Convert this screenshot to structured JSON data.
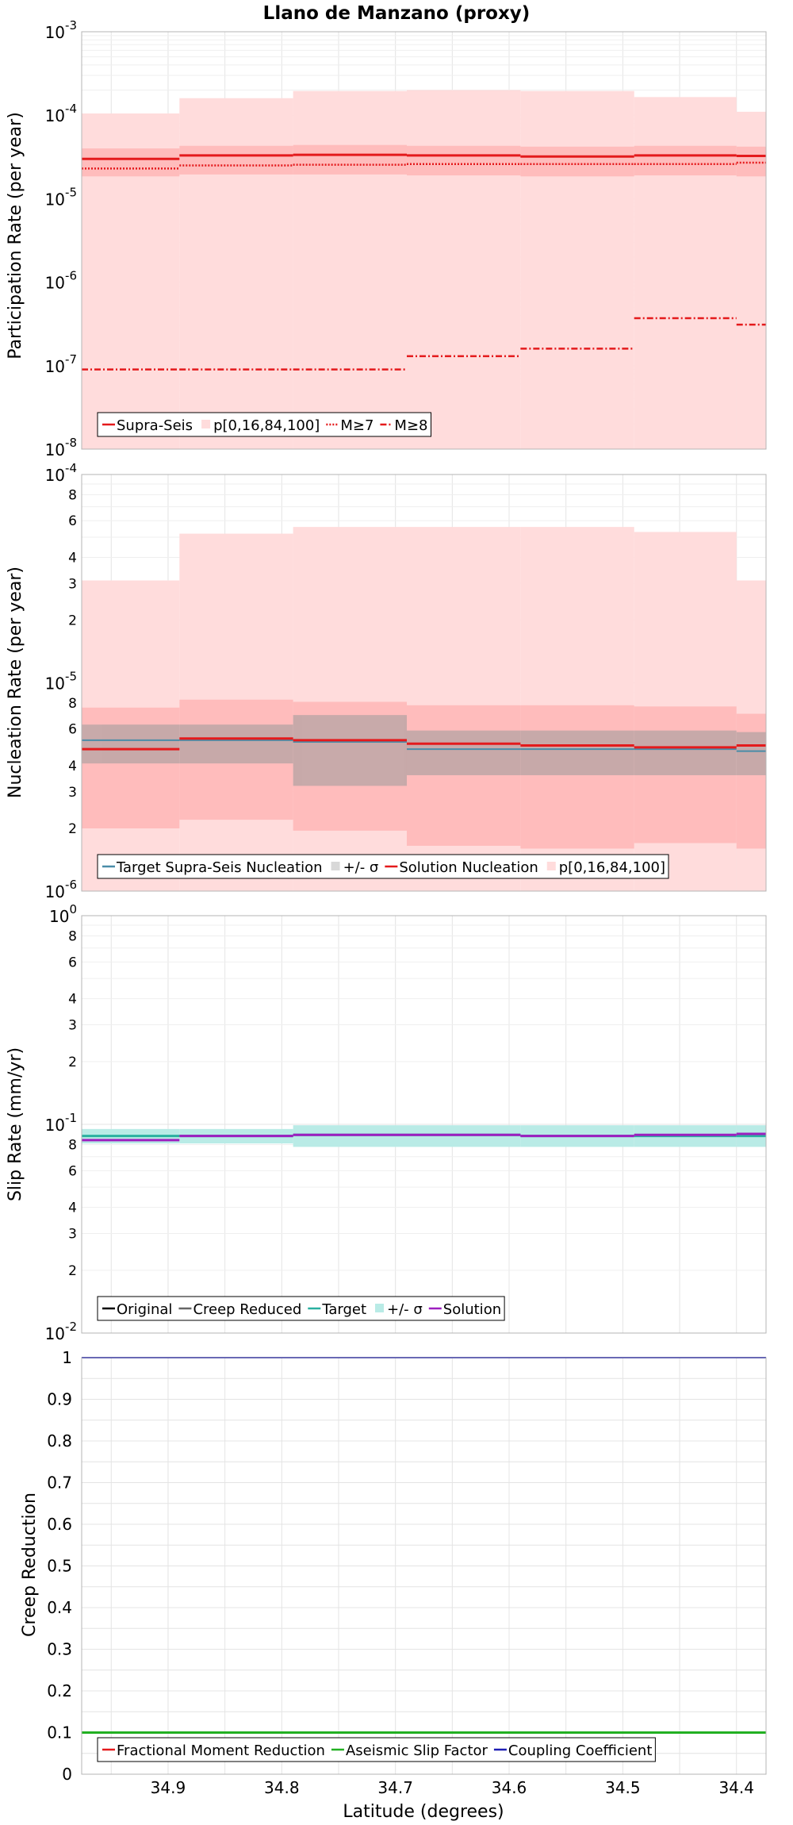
{
  "title": "Llano de Manzano (proxy)",
  "xlabel": "Latitude (degrees)",
  "x_ticks": [
    "34.9",
    "34.8",
    "34.7",
    "34.6",
    "34.5",
    "34.4"
  ],
  "colors": {
    "red": "#e41a1c",
    "pink": "#ffdcdc",
    "pink_mid": "#ffbcbc",
    "gray": "#9a9a9a",
    "teal": "#2ab0a0",
    "teal_band": "#b9ebe6",
    "purple": "#9d1fbf",
    "green": "#22b022",
    "blue": "#1e1eb4",
    "steel": "#4a8da8"
  },
  "chart_data": [
    {
      "type": "line",
      "subtype": "step",
      "ylabel": "Participation Rate (per year)",
      "yscale": "log",
      "ylim": [
        1e-08,
        0.001
      ],
      "x_range": [
        34.976,
        34.374
      ],
      "x_bins": [
        34.976,
        34.89,
        34.79,
        34.69,
        34.59,
        34.49,
        34.4,
        34.374
      ],
      "y_ticks": [
        "10-8",
        "10-7",
        "10-6",
        "10-5",
        "10-4",
        "10-3"
      ],
      "grid": true,
      "legend_position": "bottom-left",
      "series": [
        {
          "name": "Supra-Seis",
          "style": "solid",
          "values": [
            3e-05,
            3.3e-05,
            3.35e-05,
            3.3e-05,
            3.2e-05,
            3.3e-05,
            3.25e-05,
            2.9e-05
          ]
        },
        {
          "name": "p[0,16,84,100]",
          "style": "band",
          "outer_low": [
            1e-08,
            1e-08,
            1e-08,
            1e-08,
            1e-08,
            1e-08,
            1e-08,
            1e-08
          ],
          "outer_high": [
            0.000105,
            0.00016,
            0.000195,
            0.0002,
            0.000195,
            0.000165,
            0.00011,
            0.000105
          ],
          "inner_low": [
            1.85e-05,
            1.95e-05,
            1.95e-05,
            1.9e-05,
            1.85e-05,
            1.9e-05,
            1.85e-05,
            1.8e-05
          ],
          "inner_high": [
            4e-05,
            4.3e-05,
            4.4e-05,
            4.3e-05,
            4.2e-05,
            4.3e-05,
            4.2e-05,
            4e-05
          ]
        },
        {
          "name": "M≥7",
          "style": "dotted",
          "values": [
            2.3e-05,
            2.5e-05,
            2.55e-05,
            2.6e-05,
            2.6e-05,
            2.6e-05,
            2.7e-05,
            2.3e-05
          ]
        },
        {
          "name": "M≥8",
          "style": "dashdot",
          "values": [
            9e-08,
            9e-08,
            9e-08,
            1.3e-07,
            1.6e-07,
            3.7e-07,
            3.1e-07,
            2.6e-07
          ]
        }
      ]
    },
    {
      "type": "line",
      "subtype": "step",
      "ylabel": "Nucleation Rate (per year)",
      "yscale": "log",
      "ylim": [
        1e-06,
        0.0001
      ],
      "x_range": [
        34.976,
        34.374
      ],
      "x_bins": [
        34.976,
        34.89,
        34.79,
        34.69,
        34.59,
        34.49,
        34.4,
        34.374
      ],
      "y_ticks": [
        "10-6",
        "2",
        "3",
        "4",
        "6",
        "8",
        "10-5",
        "2",
        "3",
        "4",
        "6",
        "8",
        "10-4"
      ],
      "grid": true,
      "legend_position": "bottom-left",
      "series": [
        {
          "name": "Target Supra-Seis Nucleation",
          "style": "solid",
          "values": [
            5.3e-06,
            5.3e-06,
            5.2e-06,
            4.8e-06,
            4.8e-06,
            4.8e-06,
            4.7e-06,
            5e-06
          ]
        },
        {
          "name": "+/- σ",
          "style": "band",
          "low": [
            4.1e-06,
            4.1e-06,
            3.2e-06,
            3.6e-06,
            3.6e-06,
            3.6e-06,
            3.6e-06,
            3.8e-06
          ],
          "high": [
            6.3e-06,
            6.3e-06,
            7e-06,
            5.9e-06,
            5.9e-06,
            5.9e-06,
            5.8e-06,
            6e-06
          ]
        },
        {
          "name": "Solution Nucleation",
          "style": "solid",
          "values": [
            4.8e-06,
            5.4e-06,
            5.3e-06,
            5.1e-06,
            5e-06,
            4.9e-06,
            5e-06,
            4.3e-06
          ]
        },
        {
          "name": "p[0,16,84,100]",
          "style": "band",
          "outer_low": [
            1e-06,
            1e-06,
            1e-06,
            1e-06,
            1e-06,
            1e-06,
            1e-06,
            1e-06
          ],
          "outer_high": [
            3.1e-05,
            5.2e-05,
            5.6e-05,
            5.6e-05,
            5.6e-05,
            5.3e-05,
            3.1e-05,
            3.1e-05
          ],
          "inner_low": [
            2e-06,
            2.2e-06,
            1.95e-06,
            1.65e-06,
            1.6e-06,
            1.7e-06,
            1.6e-06,
            1.6e-06
          ],
          "inner_high": [
            7.6e-06,
            8.3e-06,
            8.1e-06,
            7.8e-06,
            7.8e-06,
            7.7e-06,
            7.1e-06,
            7e-06
          ]
        }
      ]
    },
    {
      "type": "line",
      "subtype": "step",
      "ylabel": "Slip Rate (mm/yr)",
      "yscale": "log",
      "ylim": [
        0.01,
        1
      ],
      "x_range": [
        34.976,
        34.374
      ],
      "x_bins": [
        34.976,
        34.89,
        34.79,
        34.69,
        34.59,
        34.49,
        34.4,
        34.374
      ],
      "y_ticks": [
        "10-2",
        "2",
        "3",
        "4",
        "6",
        "8",
        "10-1",
        "2",
        "3",
        "4",
        "6",
        "8",
        "100"
      ],
      "grid": true,
      "legend_position": "bottom-left",
      "series": [
        {
          "name": "Original",
          "style": "solid",
          "values": []
        },
        {
          "name": "Creep Reduced",
          "style": "solid",
          "values": []
        },
        {
          "name": "Target",
          "style": "solid",
          "values": [
            0.088,
            0.088,
            0.089,
            0.089,
            0.088,
            0.088,
            0.088,
            0.088
          ]
        },
        {
          "name": "+/- σ",
          "style": "band",
          "low": [
            0.081,
            0.081,
            0.078,
            0.078,
            0.078,
            0.078,
            0.078,
            0.078
          ],
          "high": [
            0.095,
            0.095,
            0.099,
            0.099,
            0.099,
            0.099,
            0.099,
            0.099
          ]
        },
        {
          "name": "Solution",
          "style": "solid",
          "values": [
            0.084,
            0.088,
            0.089,
            0.089,
            0.088,
            0.089,
            0.09,
            0.081
          ]
        }
      ]
    },
    {
      "type": "line",
      "subtype": "step",
      "ylabel": "Creep Reduction",
      "yscale": "linear",
      "ylim": [
        0,
        1
      ],
      "x_range": [
        34.976,
        34.374
      ],
      "y_ticks": [
        "0",
        "0.1",
        "0.2",
        "0.3",
        "0.4",
        "0.5",
        "0.6",
        "0.7",
        "0.8",
        "0.9",
        "1"
      ],
      "grid": true,
      "legend_position": "bottom-left",
      "series": [
        {
          "name": "Fractional Moment Reduction",
          "style": "solid",
          "values": []
        },
        {
          "name": "Aseismic Slip Factor",
          "style": "solid",
          "values": [
            0.1,
            0.1
          ]
        },
        {
          "name": "Coupling Coefficient",
          "style": "solid",
          "values": [
            1.0,
            1.0
          ]
        }
      ]
    }
  ]
}
